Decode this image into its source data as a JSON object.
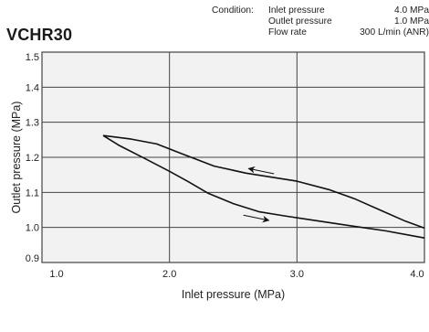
{
  "model": "VCHR30",
  "condition": {
    "label": "Condition:",
    "rows": [
      {
        "name": "Inlet pressure",
        "value": "4.0 MPa"
      },
      {
        "name": "Outlet pressure",
        "value": "1.0 MPa"
      },
      {
        "name": "Flow rate",
        "value": "300 L/min (ANR)"
      }
    ]
  },
  "colors": {
    "grid": "#444444",
    "plot_bg": "#f2f2f2",
    "curve": "#111111"
  },
  "chart_data": {
    "type": "line",
    "xlabel": "Inlet pressure (MPa)",
    "ylabel": "Outlet pressure (MPa)",
    "xlim": [
      1.0,
      4.0
    ],
    "ylim": [
      0.9,
      1.5
    ],
    "x_ticks": [
      "1.0",
      "2.0",
      "3.0",
      "4.0"
    ],
    "y_ticks": [
      "0.9",
      "1.0",
      "1.1",
      "1.2",
      "1.3",
      "1.4",
      "1.5"
    ],
    "grid": true,
    "series": [
      {
        "points": [
          [
            1.48,
            1.262
          ],
          [
            1.7,
            1.252
          ],
          [
            1.9,
            1.238
          ],
          [
            2.1,
            1.21
          ],
          [
            2.35,
            1.175
          ],
          [
            2.6,
            1.155
          ],
          [
            3.0,
            1.132
          ],
          [
            3.25,
            1.108
          ],
          [
            3.45,
            1.082
          ],
          [
            3.65,
            1.05
          ],
          [
            3.85,
            1.018
          ],
          [
            4.0,
            0.998
          ]
        ]
      },
      {
        "points": [
          [
            1.48,
            1.262
          ],
          [
            1.6,
            1.235
          ],
          [
            1.8,
            1.198
          ],
          [
            2.0,
            1.16
          ],
          [
            2.15,
            1.13
          ],
          [
            2.3,
            1.098
          ],
          [
            2.5,
            1.068
          ],
          [
            2.7,
            1.045
          ],
          [
            2.9,
            1.033
          ],
          [
            3.1,
            1.022
          ],
          [
            3.4,
            1.006
          ],
          [
            3.7,
            0.99
          ],
          [
            4.0,
            0.97
          ]
        ]
      }
    ],
    "arrows": [
      {
        "from": [
          2.82,
          1.153
        ],
        "to": [
          2.62,
          1.168
        ]
      },
      {
        "from": [
          2.58,
          1.035
        ],
        "to": [
          2.78,
          1.02
        ]
      }
    ]
  }
}
